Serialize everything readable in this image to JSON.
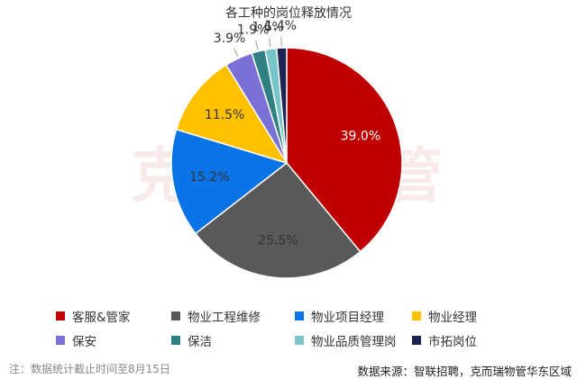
{
  "watermark": "克而瑞物管",
  "footnote": "注：数据统计截止时间至8月15日",
  "source": "数据来源：智联招聘，克而瑞物管华东区域",
  "chart_data": {
    "type": "pie",
    "title": "各工种的岗位释放情况",
    "legend_placement": "bottom",
    "slices": [
      {
        "label": "客服&管家",
        "value": 39.0,
        "display": "39.0%",
        "color": "#c00000"
      },
      {
        "label": "物业工程维修",
        "value": 25.5,
        "display": "25.5%",
        "color": "#595959"
      },
      {
        "label": "物业项目经理",
        "value": 15.2,
        "display": "15.2%",
        "color": "#0a74e6"
      },
      {
        "label": "物业经理",
        "value": 11.5,
        "display": "11.5%",
        "color": "#ffc000"
      },
      {
        "label": "保安",
        "value": 3.9,
        "display": "3.9%",
        "color": "#7b70d6"
      },
      {
        "label": "保洁",
        "value": 1.9,
        "display": "1.9%",
        "color": "#2e8082"
      },
      {
        "label": "物业品质管理岗",
        "value": 1.6,
        "display": "1.6%",
        "color": "#78c5c9"
      },
      {
        "label": "市拓岗位",
        "value": 1.4,
        "display": "1.4%",
        "color": "#1c2353"
      }
    ]
  }
}
